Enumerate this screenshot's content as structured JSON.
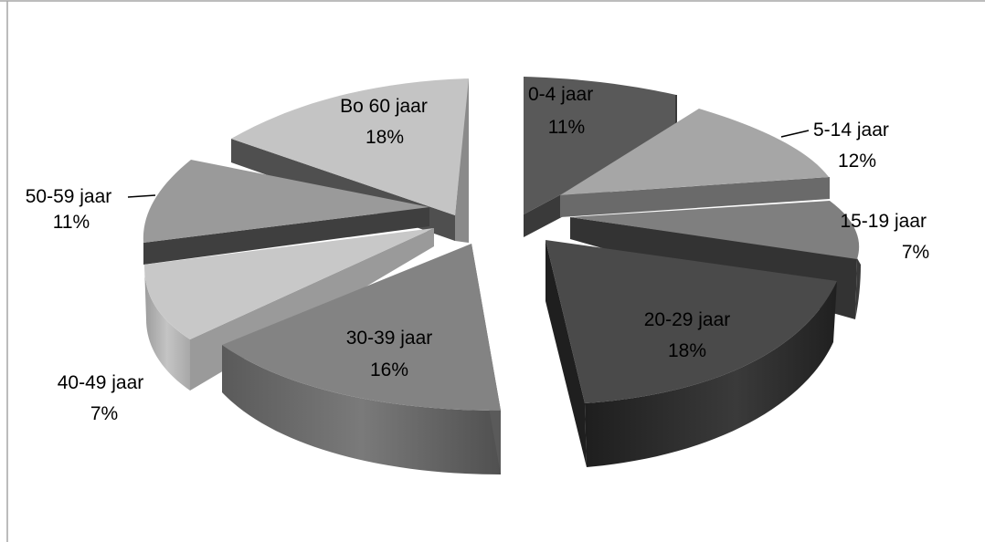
{
  "chart_data": {
    "type": "pie",
    "title": "",
    "style": "exploded-3d",
    "slices": [
      {
        "category": "0-4 jaar",
        "percent_label": "11%",
        "value": 11,
        "color": "#595959",
        "side_color": "#3f3f3f"
      },
      {
        "category": "5-14 jaar",
        "percent_label": "12%",
        "value": 12,
        "color": "#a6a6a6",
        "side_color": "#5d5d5d"
      },
      {
        "category": "15-19 jaar",
        "percent_label": "7%",
        "value": 7,
        "color": "#7f7f7f",
        "side_color": "#333333"
      },
      {
        "category": "20-29 jaar",
        "percent_label": "18%",
        "value": 18,
        "color": "#4a4a4a",
        "side_color": "#262626"
      },
      {
        "category": "30-39 jaar",
        "percent_label": "16%",
        "value": 16,
        "color": "#828282",
        "side_color": "#5a5a5a"
      },
      {
        "category": "40-49 jaar",
        "percent_label": "7%",
        "value": 7,
        "color": "#c8c8c8",
        "side_color": "#9a9a9a"
      },
      {
        "category": "50-59 jaar",
        "percent_label": "11%",
        "value": 11,
        "color": "#999999",
        "side_color": "#4a4a4a"
      },
      {
        "category": "Bo 60 jaar",
        "percent_label": "18%",
        "value": 18,
        "color": "#c4c4c4",
        "side_color": "#555555"
      }
    ],
    "frame_color": "#a6a6a6"
  }
}
